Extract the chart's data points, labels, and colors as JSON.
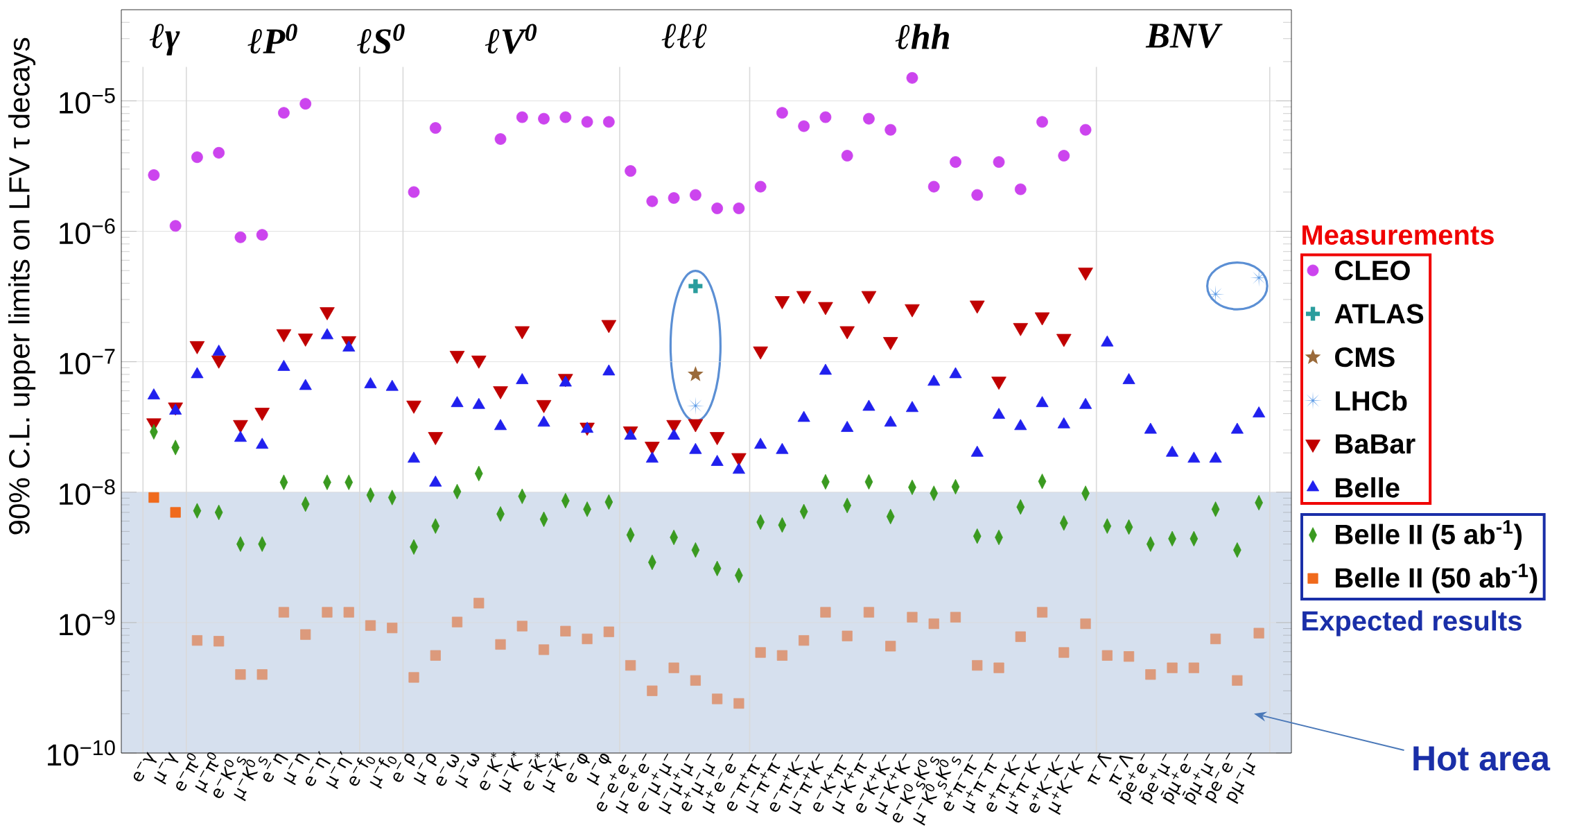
{
  "chart_data": {
    "type": "scatter",
    "ylabel": "90% C.L. upper limits on LFV τ decays",
    "categories": [
      "e$^{−}$γ",
      "μ$^{−}$γ",
      "e$^{−}$π$^{0}$",
      "μ$^{−}$π$^{0}$",
      "e$^{−}$K$^{0}$$_{S}$",
      "μ$^{−}$K$^{0}$$_{S}$",
      "e$^{−}$η",
      "μ$^{−}$η",
      "e$^{−}$η′",
      "μ$^{−}$η′",
      "e$^{−}$f$_{0}$",
      "μ$^{−}$f$_{0}$",
      "e$^{−}$ρ",
      "μ$^{−}$ρ",
      "e$^{−}$ω",
      "μ$^{−}$ω",
      "e$^{−}$K$^{*}$",
      "μ$^{−}$K$^{*}$",
      "e$^{−}$K̄$^{*}$",
      "μ$^{−}$K̄$^{*}$",
      "e$^{−}$φ",
      "μ$^{−}$φ",
      "e$^{−}$e$^{+}$e$^{−}$",
      "μ$^{−}$e$^{+}$e$^{−}$",
      "e$^{−}$μ$^{+}$μ$^{−}$",
      "μ$^{−}$μ$^{+}$μ$^{−}$",
      "e$^{+}$μ$^{−}$μ$^{−}$",
      "μ$^{+}$e$^{−}$e$^{−}$",
      "e$^{−}$π$^{+}$π$^{−}$",
      "μ$^{−}$π$^{+}$π$^{−}$",
      "e$^{−}$π$^{+}$K$^{−}$",
      "μ$^{−}$π$^{+}$K$^{−}$",
      "e$^{−}$K$^{+}$π$^{−}$",
      "μ$^{−}$K$^{+}$π$^{−}$",
      "e$^{−}$K$^{+}$K$^{−}$",
      "μ$^{−}$K$^{+}$K$^{−}$",
      "e$^{−}$K$^{0}$$_{S}$K$^{0}$$_{S}$",
      "μ$^{−}$K$^{0}$$_{S}$K$^{0}$$_{S}$",
      "e$^{+}$π$^{−}$π$^{−}$",
      "μ$^{+}$π$^{−}$π$^{−}$",
      "e$^{+}$π$^{−}$K$^{−}$",
      "μ$^{+}$π$^{−}$K$^{−}$",
      "e$^{+}$K$^{−}$K$^{−}$",
      "μ$^{+}$K$^{−}$K$^{−}$",
      "π$^{−}$Λ̄",
      "π$^{−}$Λ",
      "p̄e$^{+}$e$^{−}$",
      "p̄e$^{+}$μ$^{−}$",
      "p̄μ$^{+}$e$^{−}$",
      "p̄μ$^{+}$μ$^{−}$",
      "pe$^{−}$e$^{−}$",
      "pμ$^{−}$μ$^{−}$"
    ],
    "series": [
      {
        "name": "CLEO",
        "color": "#cc44ee",
        "marker": "circle",
        "values": [
          2.7e-06,
          1.1e-06,
          3.7e-06,
          4e-06,
          9e-07,
          9.4e-07,
          8.1e-06,
          9.5e-06,
          null,
          null,
          null,
          null,
          2e-06,
          6.2e-06,
          null,
          null,
          5.1e-06,
          7.5e-06,
          7.3e-06,
          7.5e-06,
          6.9e-06,
          6.9e-06,
          2.9e-06,
          1.7e-06,
          1.8e-06,
          1.9e-06,
          1.5e-06,
          1.5e-06,
          2.2e-06,
          8.1e-06,
          6.4e-06,
          7.5e-06,
          3.8e-06,
          7.3e-06,
          6e-06,
          1.5e-05,
          2.2e-06,
          3.4e-06,
          1.9e-06,
          3.4e-06,
          2.1e-06,
          6.9e-06,
          3.8e-06,
          6e-06,
          null,
          null,
          null,
          null,
          null,
          null,
          null,
          null
        ]
      },
      {
        "name": "ATLAS",
        "color": "#2a9d9d",
        "marker": "cross",
        "values": [
          null,
          null,
          null,
          null,
          null,
          null,
          null,
          null,
          null,
          null,
          null,
          null,
          null,
          null,
          null,
          null,
          null,
          null,
          null,
          null,
          null,
          null,
          null,
          null,
          null,
          3.8e-07,
          null,
          null,
          null,
          null,
          null,
          null,
          null,
          null,
          null,
          null,
          null,
          null,
          null,
          null,
          null,
          null,
          null,
          null,
          null,
          null,
          null,
          null,
          null,
          null,
          null,
          null
        ]
      },
      {
        "name": "CMS",
        "color": "#9a6a3a",
        "marker": "star",
        "values": [
          null,
          null,
          null,
          null,
          null,
          null,
          null,
          null,
          null,
          null,
          null,
          null,
          null,
          null,
          null,
          null,
          null,
          null,
          null,
          null,
          null,
          null,
          null,
          null,
          null,
          8e-08,
          null,
          null,
          null,
          null,
          null,
          null,
          null,
          null,
          null,
          null,
          null,
          null,
          null,
          null,
          null,
          null,
          null,
          null,
          null,
          null,
          null,
          null,
          null,
          null,
          null,
          null
        ]
      },
      {
        "name": "LHCb",
        "color": "#5a9ae6",
        "values": [
          null,
          null,
          null,
          null,
          null,
          null,
          null,
          null,
          null,
          null,
          null,
          null,
          null,
          null,
          null,
          null,
          null,
          null,
          null,
          null,
          null,
          null,
          null,
          null,
          null,
          4.6e-08,
          null,
          null,
          null,
          null,
          null,
          null,
          null,
          null,
          null,
          null,
          null,
          null,
          null,
          null,
          null,
          null,
          null,
          null,
          null,
          null,
          null,
          null,
          null,
          3.3e-07,
          null,
          4.4e-07
        ]
      },
      {
        "name": "BaBar",
        "color": "#c00000",
        "marker": "triangle-down",
        "values": [
          3.4e-08,
          4.5e-08,
          1.33e-07,
          1.03e-07,
          3.3e-08,
          4.1e-08,
          1.64e-07,
          1.52e-07,
          2.42e-07,
          1.45e-07,
          null,
          null,
          4.65e-08,
          2.67e-08,
          1.12e-07,
          1.03e-07,
          6e-08,
          1.73e-07,
          4.7e-08,
          7.45e-08,
          3.15e-08,
          1.93e-07,
          2.95e-08,
          2.25e-08,
          3.3e-08,
          3.35e-08,
          2.67e-08,
          1.84e-08,
          1.21e-07,
          2.94e-07,
          3.22e-07,
          2.65e-07,
          1.73e-07,
          3.22e-07,
          1.43e-07,
          2.55e-07,
          null,
          null,
          2.72e-07,
          7.1e-08,
          1.83e-07,
          2.21e-07,
          1.51e-07,
          4.87e-07,
          null,
          null,
          null,
          null,
          null,
          null,
          null,
          null
        ]
      },
      {
        "name": "Belle",
        "color": "#2020ee",
        "marker": "triangle",
        "values": [
          5.5e-08,
          4.2e-08,
          8e-08,
          1.19e-07,
          2.6e-08,
          2.3e-08,
          9.1e-08,
          6.5e-08,
          1.59e-07,
          1.28e-07,
          6.7e-08,
          6.4e-08,
          1.8e-08,
          1.18e-08,
          4.8e-08,
          4.65e-08,
          3.2e-08,
          7.2e-08,
          3.4e-08,
          6.9e-08,
          3.05e-08,
          8.4e-08,
          2.7e-08,
          1.8e-08,
          2.7e-08,
          2.1e-08,
          1.7e-08,
          1.48e-08,
          2.3e-08,
          2.1e-08,
          3.7e-08,
          8.5e-08,
          3.1e-08,
          4.5e-08,
          3.4e-08,
          4.4e-08,
          7e-08,
          8e-08,
          2e-08,
          3.9e-08,
          3.2e-08,
          4.8e-08,
          3.3e-08,
          4.65e-08,
          1.4e-07,
          7.2e-08,
          3e-08,
          2e-08,
          1.8e-08,
          1.8e-08,
          3e-08,
          4e-08
        ]
      },
      {
        "name": "Belle II (5 ab$^{-1}$)",
        "color": "#3a9a20",
        "marker": "diamond",
        "values": [
          2.9e-08,
          2.2e-08,
          7.2e-09,
          7e-09,
          4e-09,
          4e-09,
          1.19e-08,
          8.1e-09,
          1.19e-08,
          1.19e-08,
          9.5e-09,
          9.1e-09,
          3.8e-09,
          5.5e-09,
          1.01e-08,
          1.39e-08,
          6.8e-09,
          9.3e-09,
          6.2e-09,
          8.6e-09,
          7.4e-09,
          8.4e-09,
          4.7e-09,
          2.9e-09,
          4.5e-09,
          3.6e-09,
          2.6e-09,
          2.3e-09,
          5.9e-09,
          5.6e-09,
          7.1e-09,
          1.2e-08,
          7.9e-09,
          1.2e-08,
          6.5e-09,
          1.09e-08,
          9.8e-09,
          1.1e-08,
          4.6e-09,
          4.5e-09,
          7.7e-09,
          1.21e-08,
          5.8e-09,
          9.8e-09,
          5.5e-09,
          5.4e-09,
          4e-09,
          4.4e-09,
          4.4e-09,
          7.4e-09,
          3.6e-09,
          8.3e-09
        ]
      },
      {
        "name": "Belle II (50 ab$^{-1}$)",
        "color": "#f06a1c",
        "marker": "square",
        "colors": [
          "#f06a1c",
          "#f06a1c",
          "#dc9a7c",
          "#dc9a7c",
          "#dc9a7c",
          "#dc9a7c",
          "#dc9a7c",
          "#dc9a7c",
          "#dc9a7c",
          "#dc9a7c",
          "#dc9a7c",
          "#dc9a7c",
          "#dc9a7c",
          "#dc9a7c",
          "#dc9a7c",
          "#dc9a7c",
          "#dc9a7c",
          "#dc9a7c",
          "#dc9a7c",
          "#dc9a7c",
          "#dc9a7c",
          "#dc9a7c",
          "#dc9a7c",
          "#dc9a7c",
          "#dc9a7c",
          "#dc9a7c",
          "#dc9a7c",
          "#dc9a7c",
          "#dc9a7c",
          "#dc9a7c",
          "#dc9a7c",
          "#dc9a7c",
          "#dc9a7c",
          "#dc9a7c",
          "#dc9a7c",
          "#dc9a7c",
          "#dc9a7c",
          "#dc9a7c",
          "#dc9a7c",
          "#dc9a7c",
          "#dc9a7c",
          "#dc9a7c",
          "#dc9a7c",
          "#dc9a7c",
          "#dc9a7c",
          "#dc9a7c",
          "#dc9a7c",
          "#dc9a7c",
          "#dc9a7c",
          "#dc9a7c",
          "#dc9a7c",
          "#dc9a7c"
        ],
        "values": [
          9.1e-09,
          7e-09,
          7.3e-10,
          7.2e-10,
          4e-10,
          4e-10,
          1.2e-09,
          8.1e-10,
          1.2e-09,
          1.2e-09,
          9.5e-10,
          9.1e-10,
          3.8e-10,
          5.6e-10,
          1.01e-09,
          1.41e-09,
          6.8e-10,
          9.4e-10,
          6.2e-10,
          8.6e-10,
          7.5e-10,
          8.5e-10,
          4.7e-10,
          3e-10,
          4.5e-10,
          3.6e-10,
          2.6e-10,
          2.4e-10,
          5.9e-10,
          5.6e-10,
          7.3e-10,
          1.2e-09,
          7.9e-10,
          1.2e-09,
          6.6e-10,
          1.1e-09,
          9.8e-10,
          1.1e-09,
          4.7e-10,
          4.5e-10,
          7.8e-10,
          1.2e-09,
          5.9e-10,
          9.8e-10,
          5.6e-10,
          5.5e-10,
          4e-10,
          4.5e-10,
          4.5e-10,
          7.5e-10,
          3.6e-10,
          8.3e-10
        ]
      }
    ],
    "log": "y",
    "ylim": [
      1e-10,
      5e-05
    ],
    "yticks": [
      {
        "value": 1e-10,
        "label": "10$^{−10}$"
      },
      {
        "value": 1e-09,
        "label": "10$^{−9}$"
      },
      {
        "value": 1e-08,
        "label": "10$^{−8}$"
      },
      {
        "value": 1e-07,
        "label": "10$^{−7}$"
      },
      {
        "value": 1e-06,
        "label": "10$^{−6}$"
      },
      {
        "value": 1e-05,
        "label": "10$^{−5}$"
      }
    ],
    "grid": true,
    "legend": "right",
    "bands": [
      {
        "axis": "y",
        "from": 1e-10,
        "to": 1e-08,
        "label": "Hot area",
        "color": "#d6e0ee"
      }
    ],
    "annotations": [
      "ℓγ",
      "ℓP$^{0}$",
      "ℓS$^{0}$",
      "ℓV$^{0}$",
      "ℓℓℓ",
      "ℓhh",
      "BNV",
      "Measurements",
      "Expected results"
    ]
  }
}
